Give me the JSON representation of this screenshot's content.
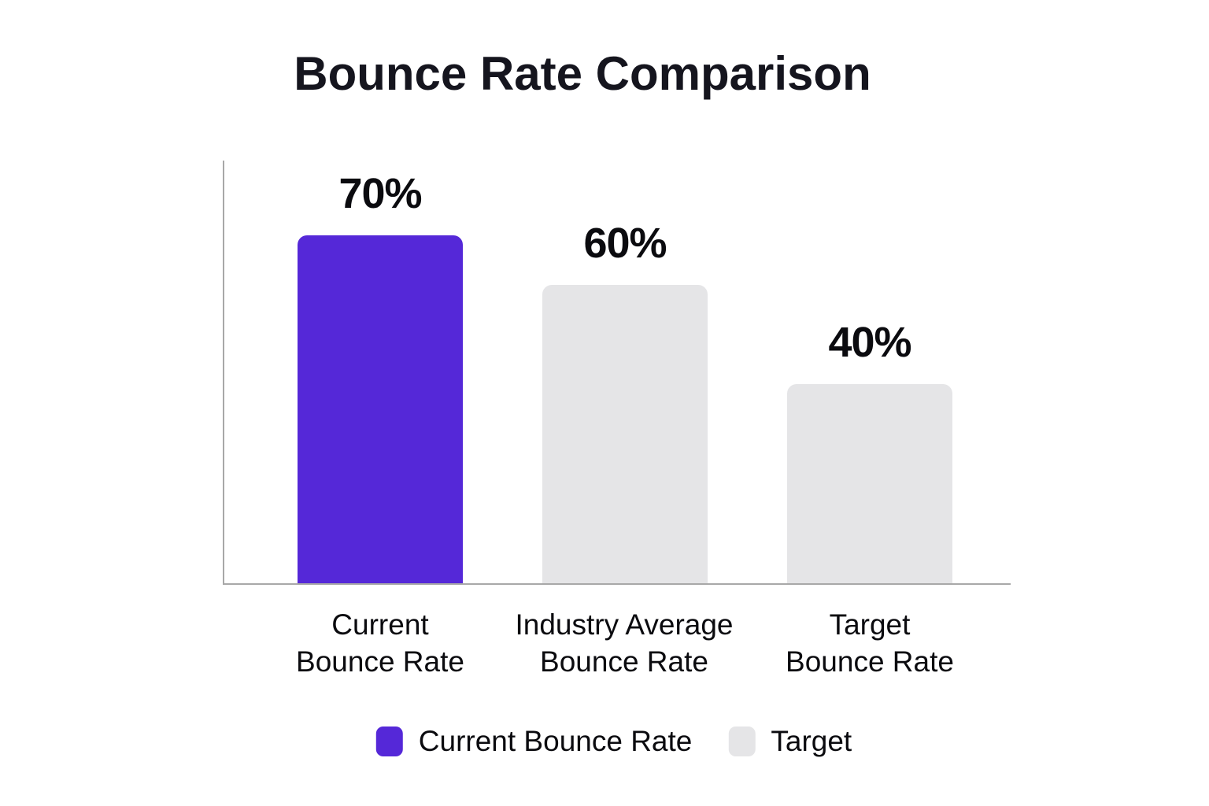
{
  "colors": {
    "primary": "#5528D8",
    "secondary": "#E5E5E7",
    "axis": "#A8A8A8",
    "text": "#0B0B0F",
    "title_text": "#15151E",
    "background": "#FFFFFF"
  },
  "chart_data": {
    "type": "bar",
    "title": "Bounce Rate Comparison",
    "categories": [
      "Current Bounce Rate",
      "Industry Average Bounce Rate",
      "Target Bounce Rate"
    ],
    "category_lines": [
      [
        "Current",
        "Bounce Rate"
      ],
      [
        "Industry Average",
        "Bounce Rate"
      ],
      [
        "Target",
        "Bounce Rate"
      ]
    ],
    "values": [
      70,
      60,
      40
    ],
    "value_labels": [
      "70%",
      "60%",
      "40%"
    ],
    "bar_colors": [
      "#5528D8",
      "#E5E5E7",
      "#E5E5E7"
    ],
    "xlabel": "",
    "ylabel": "",
    "ylim": [
      0,
      85
    ],
    "grid": false,
    "legend_position": "bottom",
    "legend": [
      {
        "label": "Current Bounce Rate",
        "color": "#5528D8"
      },
      {
        "label": "Target",
        "color": "#E5E5E7"
      }
    ]
  }
}
